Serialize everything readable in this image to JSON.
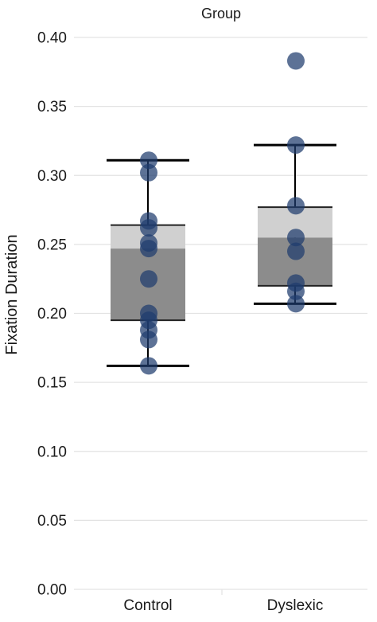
{
  "chart_data": {
    "type": "box",
    "title": "Group",
    "xlabel": "",
    "ylabel": "Fixation Duration",
    "ylim": [
      0.0,
      0.4
    ],
    "yticks": [
      "0.00",
      "0.05",
      "0.10",
      "0.15",
      "0.20",
      "0.25",
      "0.30",
      "0.35",
      "0.40"
    ],
    "ytick_values": [
      0.0,
      0.05,
      0.1,
      0.15,
      0.2,
      0.25,
      0.3,
      0.35,
      0.4
    ],
    "grid": true,
    "categories": [
      "Control",
      "Dyslexic"
    ],
    "boxes": [
      {
        "category": "Control",
        "whisker_low": 0.162,
        "q1": 0.195,
        "median": 0.247,
        "q3": 0.264,
        "whisker_high": 0.311
      },
      {
        "category": "Dyslexic",
        "whisker_low": 0.207,
        "q1": 0.22,
        "median": 0.255,
        "q3": 0.277,
        "whisker_high": 0.322
      }
    ],
    "points": [
      {
        "category": "Control",
        "values": [
          0.311,
          0.302,
          0.267,
          0.262,
          0.251,
          0.247,
          0.225,
          0.2,
          0.195,
          0.188,
          0.181,
          0.162
        ]
      },
      {
        "category": "Dyslexic",
        "values": [
          0.383,
          0.322,
          0.278,
          0.255,
          0.245,
          0.222,
          0.216,
          0.207
        ]
      }
    ],
    "colors": {
      "point": "#1f3b6e",
      "box_lower": "#8c8c8c",
      "box_upper": "#d0d0d0",
      "whisker": "#000000",
      "grid": "#e3e3e3"
    }
  }
}
